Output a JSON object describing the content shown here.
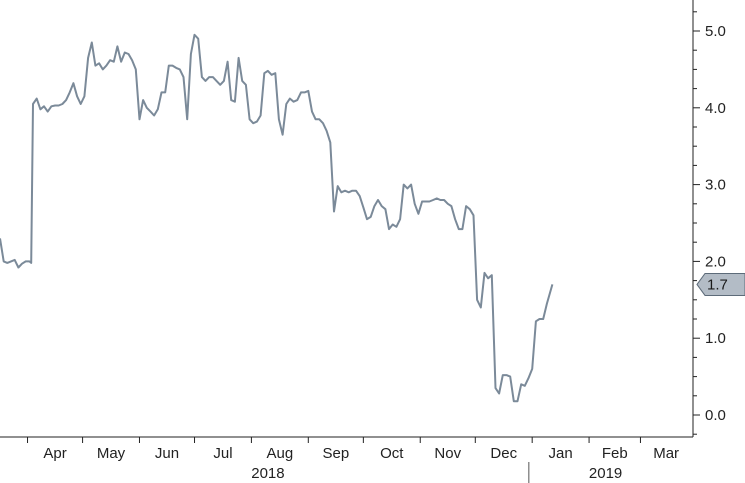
{
  "chart_data": {
    "type": "line",
    "title": "",
    "xlabel": "",
    "ylabel": "",
    "ylim": [
      -0.3,
      5.4
    ],
    "y_ticks": [
      0.0,
      1.0,
      2.0,
      3.0,
      4.0,
      5.0
    ],
    "y_tick_labels": [
      "0.0",
      "1.0",
      "2.0",
      "3.0",
      "4.0",
      "5.0"
    ],
    "y_axis_side": "right",
    "grid": false,
    "x_range": [
      "2018-03-17",
      "2019-03-28"
    ],
    "month_ticks": [
      {
        "label": "Apr",
        "date": "2018-04-01"
      },
      {
        "label": "May",
        "date": "2018-05-01"
      },
      {
        "label": "Jun",
        "date": "2018-06-01"
      },
      {
        "label": "Jul",
        "date": "2018-07-01"
      },
      {
        "label": "Aug",
        "date": "2018-08-01"
      },
      {
        "label": "Sep",
        "date": "2018-09-01"
      },
      {
        "label": "Oct",
        "date": "2018-10-01"
      },
      {
        "label": "Nov",
        "date": "2018-11-01"
      },
      {
        "label": "Dec",
        "date": "2018-12-01"
      },
      {
        "label": "Jan",
        "date": "2019-01-01"
      },
      {
        "label": "Feb",
        "date": "2019-02-01"
      },
      {
        "label": "Mar",
        "date": "2019-03-01"
      }
    ],
    "year_labels": [
      {
        "label": "2018",
        "date": "2018-08-10"
      },
      {
        "label": "2019",
        "date": "2019-02-10"
      }
    ],
    "year_divider_date": "2018-12-28",
    "last_value_label": "1.7",
    "series": [
      {
        "color": "#7b8a99",
        "points": [
          [
            "2018-03-17",
            2.3
          ],
          [
            "2018-03-19",
            2.0
          ],
          [
            "2018-03-21",
            1.98
          ],
          [
            "2018-03-23",
            2.0
          ],
          [
            "2018-03-25",
            2.02
          ],
          [
            "2018-03-27",
            1.92
          ],
          [
            "2018-03-29",
            1.97
          ],
          [
            "2018-03-31",
            2.0
          ],
          [
            "2018-04-02",
            2.0
          ],
          [
            "2018-04-03",
            1.98
          ],
          [
            "2018-04-04",
            4.05
          ],
          [
            "2018-04-06",
            4.12
          ],
          [
            "2018-04-08",
            3.98
          ],
          [
            "2018-04-10",
            4.02
          ],
          [
            "2018-04-12",
            3.95
          ],
          [
            "2018-04-14",
            4.02
          ],
          [
            "2018-04-16",
            4.03
          ],
          [
            "2018-04-18",
            4.03
          ],
          [
            "2018-04-20",
            4.05
          ],
          [
            "2018-04-22",
            4.1
          ],
          [
            "2018-04-24",
            4.2
          ],
          [
            "2018-04-26",
            4.32
          ],
          [
            "2018-04-28",
            4.15
          ],
          [
            "2018-04-30",
            4.05
          ],
          [
            "2018-05-02",
            4.15
          ],
          [
            "2018-05-04",
            4.65
          ],
          [
            "2018-05-06",
            4.85
          ],
          [
            "2018-05-08",
            4.55
          ],
          [
            "2018-05-10",
            4.58
          ],
          [
            "2018-05-12",
            4.5
          ],
          [
            "2018-05-14",
            4.55
          ],
          [
            "2018-05-16",
            4.62
          ],
          [
            "2018-05-18",
            4.6
          ],
          [
            "2018-05-20",
            4.8
          ],
          [
            "2018-05-22",
            4.6
          ],
          [
            "2018-05-24",
            4.72
          ],
          [
            "2018-05-26",
            4.7
          ],
          [
            "2018-05-28",
            4.62
          ],
          [
            "2018-05-30",
            4.5
          ],
          [
            "2018-06-01",
            3.85
          ],
          [
            "2018-06-03",
            4.1
          ],
          [
            "2018-06-05",
            4.0
          ],
          [
            "2018-06-07",
            3.95
          ],
          [
            "2018-06-09",
            3.9
          ],
          [
            "2018-06-11",
            3.98
          ],
          [
            "2018-06-13",
            4.2
          ],
          [
            "2018-06-15",
            4.2
          ],
          [
            "2018-06-17",
            4.55
          ],
          [
            "2018-06-19",
            4.55
          ],
          [
            "2018-06-21",
            4.52
          ],
          [
            "2018-06-23",
            4.5
          ],
          [
            "2018-06-25",
            4.4
          ],
          [
            "2018-06-27",
            3.85
          ],
          [
            "2018-06-29",
            4.7
          ],
          [
            "2018-07-01",
            4.95
          ],
          [
            "2018-07-03",
            4.9
          ],
          [
            "2018-07-05",
            4.4
          ],
          [
            "2018-07-07",
            4.35
          ],
          [
            "2018-07-09",
            4.4
          ],
          [
            "2018-07-11",
            4.4
          ],
          [
            "2018-07-13",
            4.35
          ],
          [
            "2018-07-15",
            4.3
          ],
          [
            "2018-07-17",
            4.35
          ],
          [
            "2018-07-19",
            4.6
          ],
          [
            "2018-07-21",
            4.1
          ],
          [
            "2018-07-23",
            4.08
          ],
          [
            "2018-07-25",
            4.65
          ],
          [
            "2018-07-27",
            4.35
          ],
          [
            "2018-07-29",
            4.3
          ],
          [
            "2018-07-31",
            3.85
          ],
          [
            "2018-08-02",
            3.8
          ],
          [
            "2018-08-04",
            3.82
          ],
          [
            "2018-08-06",
            3.9
          ],
          [
            "2018-08-08",
            4.45
          ],
          [
            "2018-08-10",
            4.48
          ],
          [
            "2018-08-12",
            4.43
          ],
          [
            "2018-08-14",
            4.45
          ],
          [
            "2018-08-16",
            3.85
          ],
          [
            "2018-08-18",
            3.65
          ],
          [
            "2018-08-20",
            4.05
          ],
          [
            "2018-08-22",
            4.12
          ],
          [
            "2018-08-24",
            4.08
          ],
          [
            "2018-08-26",
            4.1
          ],
          [
            "2018-08-28",
            4.2
          ],
          [
            "2018-08-30",
            4.2
          ],
          [
            "2018-09-01",
            4.22
          ],
          [
            "2018-09-03",
            3.95
          ],
          [
            "2018-09-05",
            3.85
          ],
          [
            "2018-09-07",
            3.85
          ],
          [
            "2018-09-09",
            3.8
          ],
          [
            "2018-09-11",
            3.7
          ],
          [
            "2018-09-13",
            3.55
          ],
          [
            "2018-09-15",
            2.65
          ],
          [
            "2018-09-17",
            2.98
          ],
          [
            "2018-09-19",
            2.9
          ],
          [
            "2018-09-21",
            2.92
          ],
          [
            "2018-09-23",
            2.9
          ],
          [
            "2018-09-25",
            2.92
          ],
          [
            "2018-09-27",
            2.92
          ],
          [
            "2018-09-29",
            2.85
          ],
          [
            "2018-10-01",
            2.7
          ],
          [
            "2018-10-03",
            2.55
          ],
          [
            "2018-10-05",
            2.58
          ],
          [
            "2018-10-07",
            2.72
          ],
          [
            "2018-10-09",
            2.8
          ],
          [
            "2018-10-11",
            2.72
          ],
          [
            "2018-10-13",
            2.68
          ],
          [
            "2018-10-15",
            2.42
          ],
          [
            "2018-10-17",
            2.48
          ],
          [
            "2018-10-19",
            2.45
          ],
          [
            "2018-10-21",
            2.55
          ],
          [
            "2018-10-23",
            3.0
          ],
          [
            "2018-10-25",
            2.95
          ],
          [
            "2018-10-27",
            3.0
          ],
          [
            "2018-10-29",
            2.75
          ],
          [
            "2018-10-31",
            2.62
          ],
          [
            "2018-11-02",
            2.78
          ],
          [
            "2018-11-04",
            2.78
          ],
          [
            "2018-11-06",
            2.78
          ],
          [
            "2018-11-08",
            2.8
          ],
          [
            "2018-11-10",
            2.82
          ],
          [
            "2018-11-12",
            2.8
          ],
          [
            "2018-11-14",
            2.8
          ],
          [
            "2018-11-16",
            2.75
          ],
          [
            "2018-11-18",
            2.72
          ],
          [
            "2018-11-20",
            2.55
          ],
          [
            "2018-11-22",
            2.42
          ],
          [
            "2018-11-24",
            2.42
          ],
          [
            "2018-11-26",
            2.72
          ],
          [
            "2018-11-28",
            2.68
          ],
          [
            "2018-11-30",
            2.6
          ],
          [
            "2018-12-02",
            1.5
          ],
          [
            "2018-12-04",
            1.4
          ],
          [
            "2018-12-06",
            1.85
          ],
          [
            "2018-12-08",
            1.78
          ],
          [
            "2018-12-10",
            1.82
          ],
          [
            "2018-12-12",
            0.35
          ],
          [
            "2018-12-14",
            0.28
          ],
          [
            "2018-12-16",
            0.52
          ],
          [
            "2018-12-18",
            0.52
          ],
          [
            "2018-12-20",
            0.5
          ],
          [
            "2018-12-22",
            0.18
          ],
          [
            "2018-12-24",
            0.18
          ],
          [
            "2018-12-26",
            0.4
          ],
          [
            "2018-12-28",
            0.38
          ],
          [
            "2018-12-30",
            0.48
          ],
          [
            "2019-01-01",
            0.6
          ],
          [
            "2019-01-03",
            1.22
          ],
          [
            "2019-01-05",
            1.25
          ],
          [
            "2019-01-07",
            1.25
          ],
          [
            "2019-01-09",
            1.45
          ],
          [
            "2019-01-12",
            1.7
          ]
        ]
      }
    ]
  }
}
